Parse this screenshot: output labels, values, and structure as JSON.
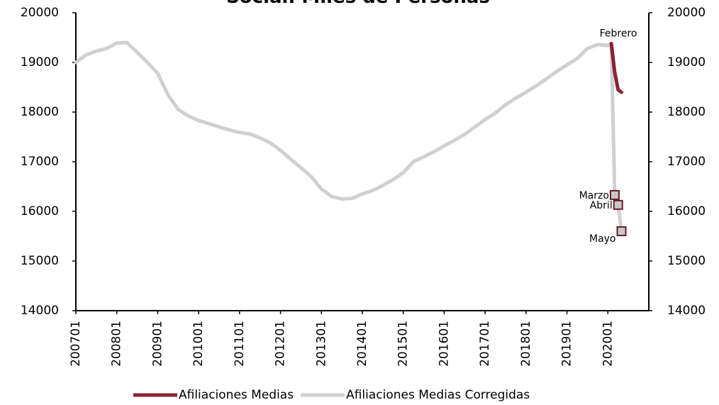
{
  "chart_data": {
    "type": "line",
    "title": "Social. Miles de Personas",
    "xlim": [
      2007,
      2021
    ],
    "xticks": [
      {
        "value": 2007,
        "label": "200701"
      },
      {
        "value": 2008,
        "label": "200801"
      },
      {
        "value": 2009,
        "label": "200901"
      },
      {
        "value": 2010,
        "label": "201001"
      },
      {
        "value": 2011,
        "label": "201101"
      },
      {
        "value": 2012,
        "label": "201201"
      },
      {
        "value": 2013,
        "label": "201301"
      },
      {
        "value": 2014,
        "label": "201401"
      },
      {
        "value": 2015,
        "label": "201501"
      },
      {
        "value": 2016,
        "label": "201601"
      },
      {
        "value": 2017,
        "label": "201701"
      },
      {
        "value": 2018,
        "label": "201801"
      },
      {
        "value": 2019,
        "label": "201901"
      },
      {
        "value": 2020,
        "label": "202001"
      }
    ],
    "ylim": [
      14000,
      20000
    ],
    "yticks": [
      14000,
      15000,
      16000,
      17000,
      18000,
      19000,
      20000
    ],
    "y2lim": [
      14000,
      20000
    ],
    "y2ticks": [
      14000,
      15000,
      16000,
      17000,
      18000,
      19000,
      20000
    ],
    "grid": false,
    "legend": "bottom",
    "series": [
      {
        "name": "Afiliaciones Medias",
        "color": "#8b2232",
        "x": [
          2020.083,
          2020.167,
          2020.25,
          2020.333
        ],
        "values": [
          19380,
          18800,
          18450,
          18400
        ],
        "labels": [
          "Febrero",
          null,
          null,
          null
        ]
      },
      {
        "name": "Afiliaciones Medias Corregidas",
        "color": "#d0d0d0",
        "marker": "square",
        "x": [
          2007,
          2007.25,
          2007.5,
          2007.75,
          2008,
          2008.25,
          2008.5,
          2008.75,
          2009,
          2009.25,
          2009.5,
          2009.75,
          2010,
          2010.25,
          2010.5,
          2010.75,
          2011,
          2011.25,
          2011.5,
          2011.75,
          2012,
          2012.25,
          2012.5,
          2012.75,
          2013,
          2013.25,
          2013.5,
          2013.75,
          2014,
          2014.25,
          2014.5,
          2014.75,
          2015,
          2015.25,
          2015.5,
          2015.75,
          2016,
          2016.25,
          2016.5,
          2016.75,
          2017,
          2017.25,
          2017.5,
          2017.75,
          2018,
          2018.25,
          2018.5,
          2018.75,
          2019,
          2019.25,
          2019.5,
          2019.75,
          2020,
          2020.083,
          2020.167,
          2020.25,
          2020.333
        ],
        "values": [
          19000,
          19150,
          19230,
          19280,
          19390,
          19400,
          19200,
          19000,
          18780,
          18350,
          18050,
          17920,
          17830,
          17770,
          17700,
          17640,
          17590,
          17560,
          17480,
          17380,
          17230,
          17050,
          16880,
          16700,
          16450,
          16300,
          16250,
          16260,
          16350,
          16420,
          16520,
          16640,
          16780,
          17000,
          17100,
          17200,
          17320,
          17430,
          17550,
          17700,
          17850,
          17980,
          18150,
          18280,
          18400,
          18530,
          18670,
          18820,
          18950,
          19080,
          19280,
          19360,
          19340,
          19380,
          16330,
          16130,
          15600
        ],
        "labels": [
          null,
          null,
          null,
          null,
          null,
          null,
          null,
          null,
          null,
          null,
          null,
          null,
          null,
          null,
          null,
          null,
          null,
          null,
          null,
          null,
          null,
          null,
          null,
          null,
          null,
          null,
          null,
          null,
          null,
          null,
          null,
          null,
          null,
          null,
          null,
          null,
          null,
          null,
          null,
          null,
          null,
          null,
          null,
          null,
          null,
          null,
          null,
          null,
          null,
          null,
          null,
          null,
          null,
          null,
          "Marzo",
          "Abril",
          "Mayo"
        ]
      }
    ]
  }
}
